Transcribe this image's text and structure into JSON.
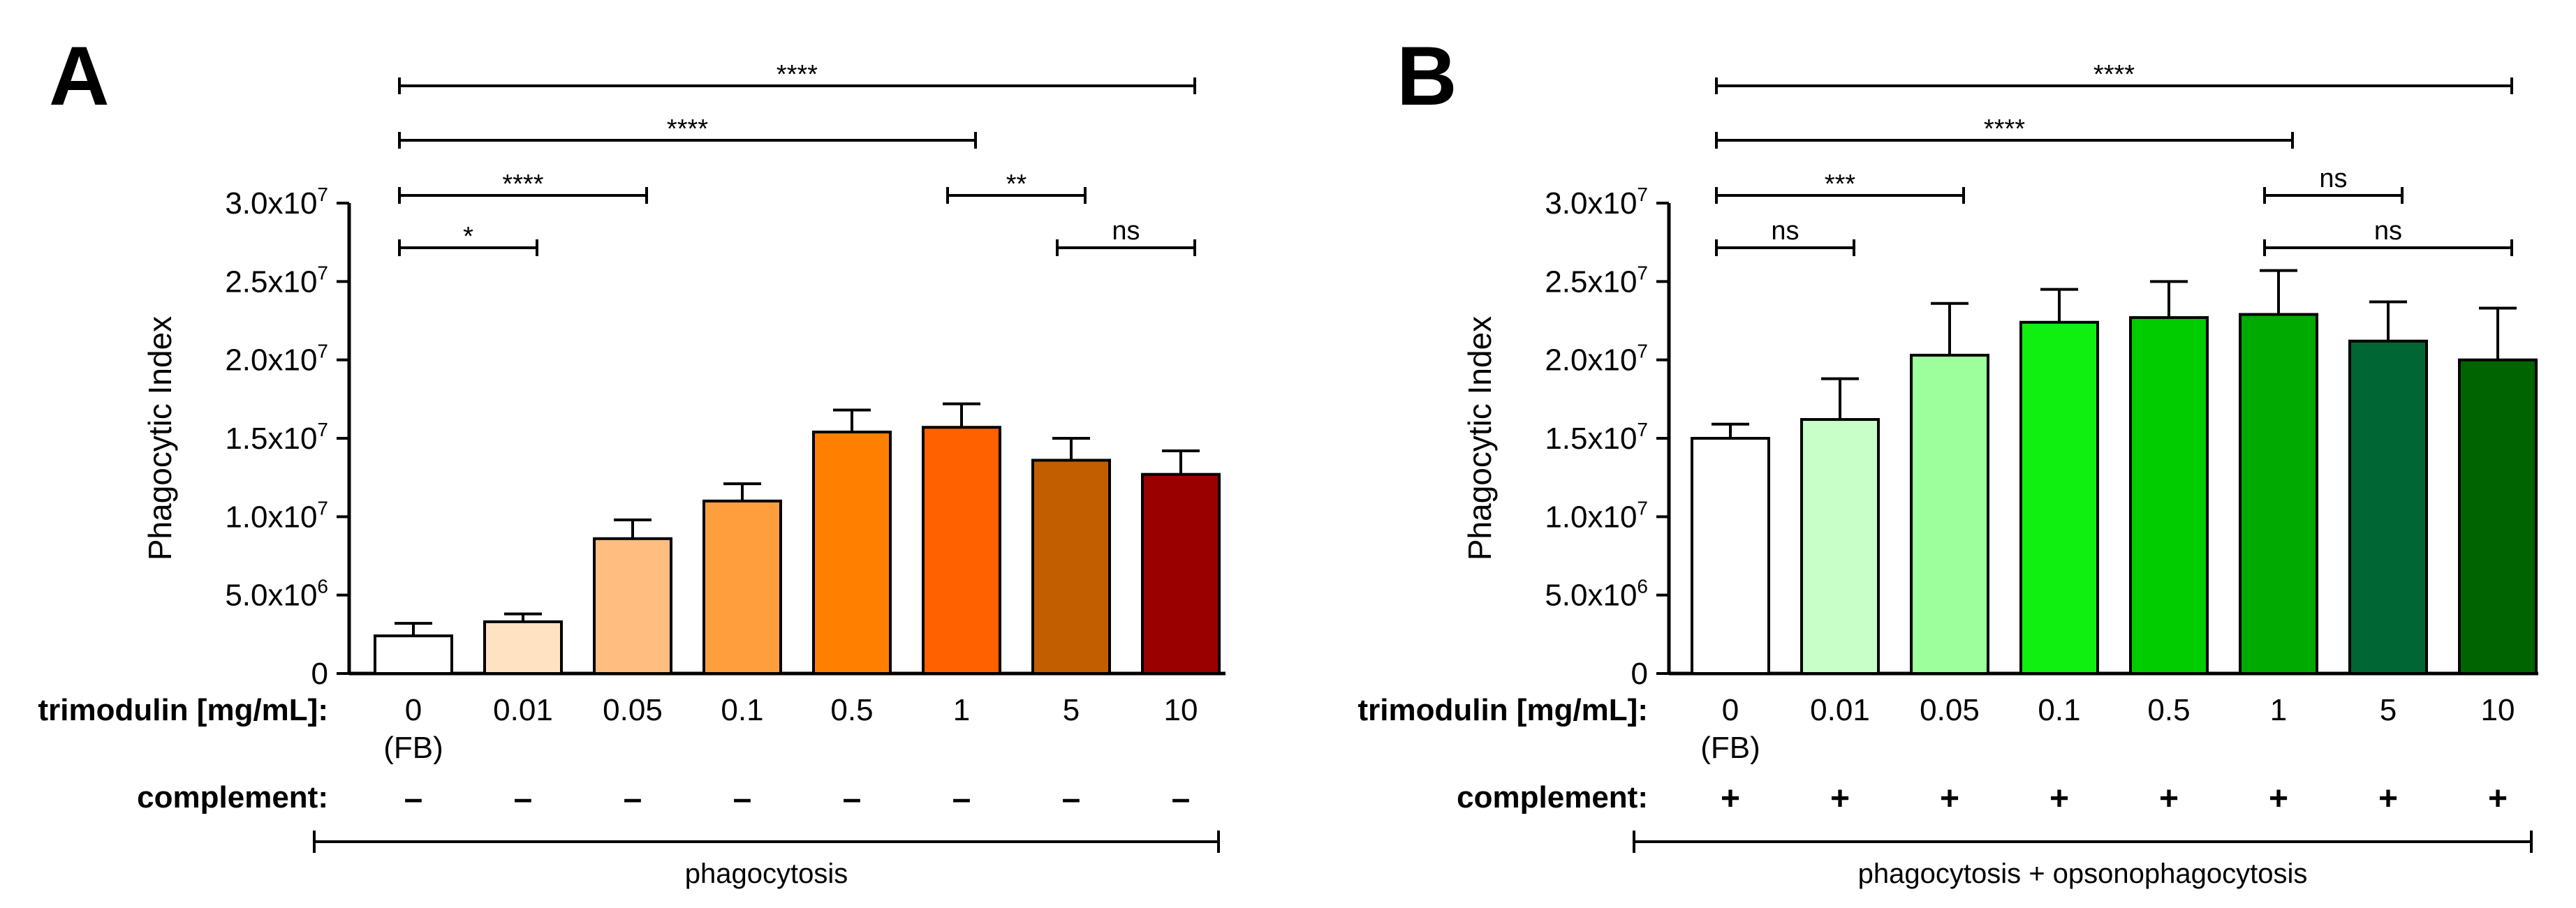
{
  "figure": {
    "row_labels": {
      "dose": "trimodulin [mg/mL]:",
      "complement": "complement:"
    },
    "fb_note": "(FB)"
  },
  "chart_data": [
    {
      "type": "bar",
      "panel": "A",
      "title": "",
      "ylabel": "Phagocytic Index",
      "xlabel": "trimodulin [mg/mL]:",
      "ylim": [
        0,
        30000000
      ],
      "yticks": [
        {
          "value": 0,
          "label": "0"
        },
        {
          "value": 5000000,
          "label": "5.0x10",
          "exp": "6"
        },
        {
          "value": 10000000,
          "label": "1.0x10",
          "exp": "7"
        },
        {
          "value": 15000000,
          "label": "1.5x10",
          "exp": "7"
        },
        {
          "value": 20000000,
          "label": "2.0x10",
          "exp": "7"
        },
        {
          "value": 25000000,
          "label": "2.5x10",
          "exp": "7"
        },
        {
          "value": 30000000,
          "label": "3.0x10",
          "exp": "7"
        }
      ],
      "categories": [
        "0",
        "0.01",
        "0.05",
        "0.1",
        "0.5",
        "1",
        "5",
        "10"
      ],
      "values": [
        2400000,
        3300000,
        8600000,
        11000000,
        15400000,
        15700000,
        13600000,
        12700000
      ],
      "errors": [
        800000,
        500000,
        1200000,
        1100000,
        1400000,
        1500000,
        1400000,
        1500000
      ],
      "colors": [
        "#ffffff",
        "#ffe2c2",
        "#ffbd80",
        "#ff9e3d",
        "#ff8000",
        "#ff6100",
        "#c25e00",
        "#9b0000"
      ],
      "complement": [
        "–",
        "–",
        "–",
        "–",
        "–",
        "–",
        "–",
        "–"
      ],
      "group_label": "phagocytosis",
      "comparisons": [
        {
          "from": 0,
          "to": 7,
          "label": "****",
          "level": 0
        },
        {
          "from": 0,
          "to": 5,
          "label": "****",
          "level": 1
        },
        {
          "from": 0,
          "to": 2,
          "label": "****",
          "level": 2
        },
        {
          "from": 5,
          "to": 6,
          "label": "**",
          "level": 2
        },
        {
          "from": 0,
          "to": 1,
          "label": "*",
          "level": 3
        },
        {
          "from": 6,
          "to": 7,
          "label": "ns",
          "level": 3
        }
      ]
    },
    {
      "type": "bar",
      "panel": "B",
      "title": "",
      "ylabel": "Phagocytic Index",
      "xlabel": "trimodulin [mg/mL]:",
      "ylim": [
        0,
        30000000
      ],
      "yticks": [
        {
          "value": 0,
          "label": "0"
        },
        {
          "value": 5000000,
          "label": "5.0x10",
          "exp": "6"
        },
        {
          "value": 10000000,
          "label": "1.0x10",
          "exp": "7"
        },
        {
          "value": 15000000,
          "label": "1.5x10",
          "exp": "7"
        },
        {
          "value": 20000000,
          "label": "2.0x10",
          "exp": "7"
        },
        {
          "value": 25000000,
          "label": "2.5x10",
          "exp": "7"
        },
        {
          "value": 30000000,
          "label": "3.0x10",
          "exp": "7"
        }
      ],
      "categories": [
        "0",
        "0.01",
        "0.05",
        "0.1",
        "0.5",
        "1",
        "5",
        "10"
      ],
      "values": [
        15000000,
        16200000,
        20300000,
        22400000,
        22700000,
        22900000,
        21200000,
        20000000
      ],
      "errors": [
        900000,
        2600000,
        3300000,
        2100000,
        2300000,
        2800000,
        2500000,
        3300000
      ],
      "colors": [
        "#ffffff",
        "#c8ffc8",
        "#9cff9c",
        "#10f010",
        "#00cc00",
        "#00aa00",
        "#006633",
        "#006400"
      ],
      "complement": [
        "+",
        "+",
        "+",
        "+",
        "+",
        "+",
        "+",
        "+"
      ],
      "group_label": "phagocytosis + opsonophagocytosis",
      "comparisons": [
        {
          "from": 0,
          "to": 7,
          "label": "****",
          "level": 0
        },
        {
          "from": 0,
          "to": 5,
          "label": "****",
          "level": 1
        },
        {
          "from": 0,
          "to": 2,
          "label": "***",
          "level": 2
        },
        {
          "from": 5,
          "to": 6,
          "label": "ns",
          "level": 2
        },
        {
          "from": 0,
          "to": 1,
          "label": "ns",
          "level": 3
        },
        {
          "from": 5,
          "to": 7,
          "label": "ns",
          "level": 3
        }
      ]
    }
  ]
}
